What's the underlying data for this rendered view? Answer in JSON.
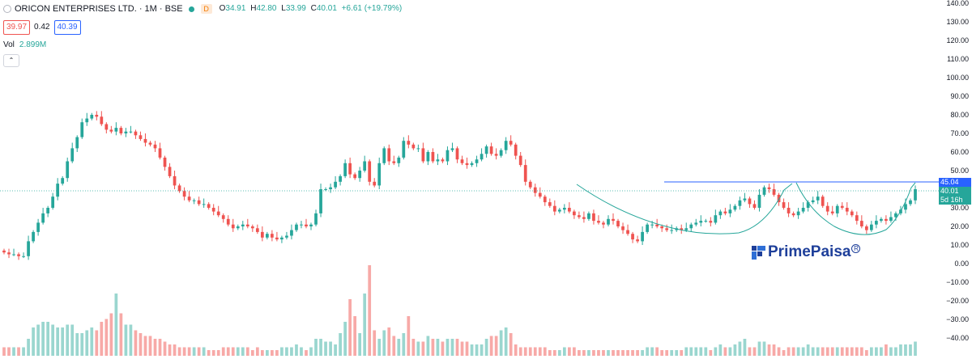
{
  "header": {
    "symbol": "ORICON ENTERPRISES LTD. · 1M · BSE",
    "badge": "D",
    "ohlc": [
      {
        "k": "O",
        "v": "34.91"
      },
      {
        "k": "H",
        "v": "42.80"
      },
      {
        "k": "L",
        "v": "33.99"
      },
      {
        "k": "C",
        "v": "40.01"
      }
    ],
    "change": "+6.61 (+19.79%)",
    "bid": "39.97",
    "spread": "0.42",
    "ask": "40.39",
    "vol_label": "Vol",
    "vol_value": "2.899M",
    "collapse_glyph": "⌃"
  },
  "tags": {
    "resistance": "45.04",
    "last": "40.01",
    "countdown": "5d 16h"
  },
  "logo": {
    "text": "PrimePaisa",
    "reg": "R"
  },
  "colors": {
    "up": "#26a69a",
    "down": "#ef5350",
    "line": "#2962ff",
    "vol_up": "#9ad6cf",
    "vol_down": "#f7a9a7"
  },
  "chart_data": {
    "type": "candlestick",
    "interval": "1M",
    "y_axis": {
      "ticks": [
        "140.00",
        "130.00",
        "120.00",
        "110.00",
        "100.00",
        "90.00",
        "80.00",
        "70.00",
        "60.00",
        "50.00",
        "40.00",
        "30.00",
        "20.00",
        "10.00",
        "0.00",
        "−10.00",
        "−20.00",
        "−30.00",
        "−40.00"
      ],
      "range": [
        -44,
        140
      ]
    },
    "resistance_level": 45.04,
    "last_price": 40.01,
    "closes": [
      6,
      5,
      5,
      4,
      4,
      12,
      17,
      22,
      27,
      30,
      36,
      43,
      46,
      55,
      62,
      68,
      76,
      78,
      80,
      79,
      75,
      72,
      71,
      73,
      70,
      71,
      71,
      69,
      67,
      65,
      64,
      62,
      57,
      52,
      47,
      42,
      39,
      36,
      34,
      34,
      32,
      32,
      30,
      28,
      26,
      24,
      21,
      19,
      20,
      21,
      20,
      19,
      17,
      14,
      16,
      14,
      13,
      14,
      15,
      18,
      21,
      21,
      20,
      21,
      27,
      40,
      40,
      41,
      44,
      47,
      54,
      48,
      46,
      50,
      55,
      44,
      42,
      54,
      62,
      55,
      54,
      57,
      66,
      64,
      62,
      62,
      55,
      60,
      55,
      56,
      55,
      61,
      62,
      56,
      54,
      53,
      54,
      56,
      59,
      63,
      59,
      58,
      61,
      66,
      64,
      58,
      53,
      44,
      41,
      38,
      36,
      33,
      31,
      28,
      29,
      30,
      28,
      26,
      25,
      24,
      27,
      23,
      22,
      21,
      24,
      23,
      20,
      18,
      16,
      13,
      12,
      17,
      21,
      21,
      20,
      19,
      18,
      18,
      19,
      18,
      19,
      21,
      22,
      23,
      23,
      22,
      26,
      28,
      27,
      29,
      31,
      34,
      35,
      32,
      30,
      37,
      41,
      40,
      37,
      33,
      30,
      27,
      26,
      28,
      30,
      33,
      34,
      36,
      31,
      28,
      27,
      31,
      30,
      28,
      26,
      23,
      20,
      18,
      21,
      23,
      24,
      23,
      25,
      27,
      29,
      32,
      34,
      40
    ],
    "volume_bars": [
      3,
      3,
      3,
      3,
      3,
      6,
      10,
      11,
      12,
      12,
      11,
      10,
      10,
      11,
      11,
      8,
      8,
      9,
      10,
      9,
      12,
      13,
      15,
      22,
      15,
      11,
      11,
      9,
      8,
      7,
      7,
      6,
      6,
      5,
      4,
      4,
      3,
      3,
      3,
      3,
      3,
      3,
      2,
      2,
      2,
      3,
      3,
      3,
      3,
      3,
      3,
      2,
      3,
      2,
      2,
      2,
      2,
      3,
      3,
      3,
      4,
      3,
      2,
      3,
      6,
      6,
      5,
      5,
      4,
      8,
      12,
      20,
      14,
      8,
      22,
      32,
      9,
      6,
      9,
      10,
      7,
      6,
      8,
      14,
      6,
      5,
      5,
      7,
      6,
      6,
      5,
      6,
      6,
      6,
      5,
      5,
      4,
      4,
      4,
      6,
      7,
      7,
      9,
      10,
      8,
      4,
      3,
      3,
      3,
      3,
      3,
      3,
      2,
      2,
      2,
      3,
      3,
      3,
      2,
      2,
      2,
      2,
      2,
      2,
      2,
      2,
      2,
      2,
      2,
      2,
      2,
      2,
      3,
      3,
      3,
      2,
      2,
      2,
      2,
      2,
      3,
      3,
      3,
      3,
      3,
      2,
      3,
      4,
      3,
      3,
      4,
      5,
      6,
      3,
      3,
      5,
      5,
      4,
      4,
      3,
      2,
      3,
      3,
      3,
      3,
      4,
      3,
      3,
      3,
      3,
      3,
      3,
      3,
      3,
      3,
      3,
      3,
      2,
      3,
      3,
      3,
      4,
      3,
      3,
      4,
      4,
      4,
      5
    ]
  }
}
